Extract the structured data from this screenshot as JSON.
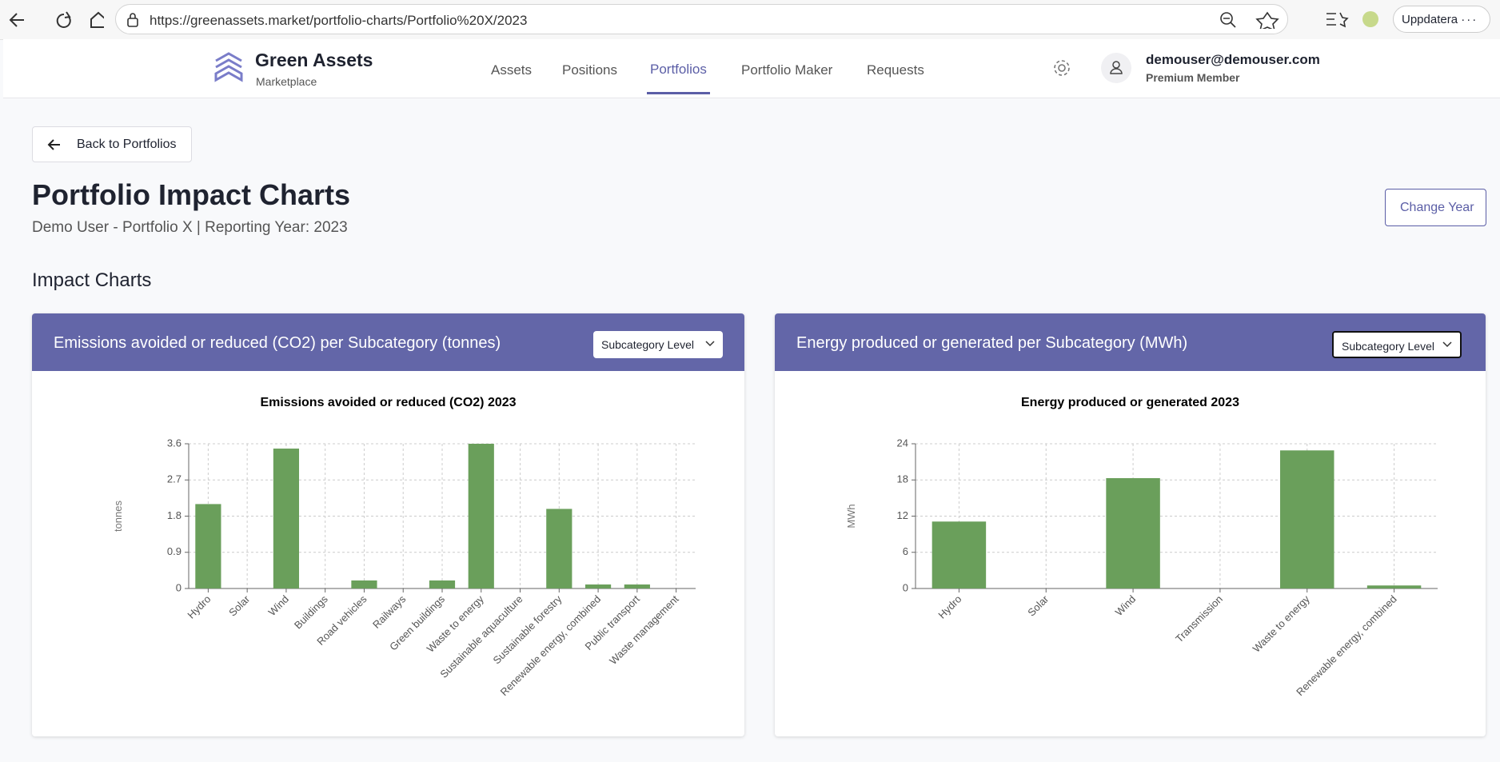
{
  "browser": {
    "url": "https://greenassets.market/portfolio-charts/Portfolio%20X/2023",
    "update_button": "Uppdatera"
  },
  "nav": {
    "brand": "Green Assets",
    "brand_sub": "Marketplace",
    "links": [
      "Assets",
      "Positions",
      "Portfolios",
      "Portfolio Maker",
      "Requests"
    ]
  },
  "user": {
    "email": "demouser@demouser.com",
    "role": "Premium Member"
  },
  "page": {
    "back_button": "Back to Portfolios",
    "title": "Portfolio Impact Charts",
    "subtitle": "Demo User - Portfolio X | Reporting Year: 2023",
    "change_year_button": "Change Year",
    "section_title": "Impact Charts"
  },
  "chart_data": [
    {
      "type": "bar",
      "panel_title": "Emissions avoided or reduced (CO2) per Subcategory (tonnes)",
      "level_select": "Subcategory Level",
      "title": "Emissions avoided or reduced (CO2) 2023",
      "y_label": "tonnes",
      "categories": [
        "Hydro",
        "Solar",
        "Wind",
        "Buildings",
        "Road vehicles",
        "Railways",
        "Green buildings",
        "Waste to energy",
        "Sustainable aquaculture",
        "Sustainable forestry",
        "Renewable energy, combined",
        "Public transport",
        "Waste management"
      ],
      "values": [
        2.1,
        0,
        3.48,
        0,
        0.2,
        0,
        0.2,
        3.6,
        0,
        1.98,
        0.1,
        0.1,
        0
      ],
      "color": "#6a9f5b",
      "ylim": [
        0,
        3.6
      ],
      "yticks": [
        0,
        0.9,
        1.8,
        2.7,
        3.6
      ],
      "grid": true
    },
    {
      "type": "bar",
      "panel_title": "Energy produced or generated per Subcategory (MWh)",
      "level_select": "Subcategory Level",
      "title": "Energy produced or generated 2023",
      "y_label": "MWh",
      "categories": [
        "Hydro",
        "Solar",
        "Wind",
        "Transmission",
        "Waste to energy",
        "Renewable energy, combined"
      ],
      "values": [
        11.1,
        0,
        18.3,
        0,
        22.9,
        0.5
      ],
      "color": "#6a9f5b",
      "ylim": [
        0,
        24
      ],
      "yticks": [
        0,
        6,
        12,
        18,
        24
      ],
      "grid": true
    }
  ]
}
